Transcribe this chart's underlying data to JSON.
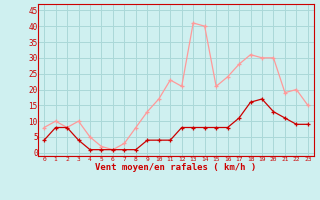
{
  "x": [
    0,
    1,
    2,
    3,
    4,
    5,
    6,
    7,
    8,
    9,
    10,
    11,
    12,
    13,
    14,
    15,
    16,
    17,
    18,
    19,
    20,
    21,
    22,
    23
  ],
  "wind_avg": [
    4,
    8,
    8,
    4,
    1,
    1,
    1,
    1,
    1,
    4,
    4,
    4,
    8,
    8,
    8,
    8,
    8,
    11,
    16,
    17,
    13,
    11,
    9,
    9
  ],
  "wind_gust": [
    8,
    10,
    8,
    10,
    5,
    2,
    1,
    3,
    8,
    13,
    17,
    23,
    21,
    41,
    40,
    21,
    24,
    28,
    31,
    30,
    30,
    19,
    20,
    15
  ],
  "xlabel": "Vent moyen/en rafales ( km/h )",
  "bg_color": "#cff0f0",
  "grid_color": "#aad8d8",
  "line_avg_color": "#cc0000",
  "line_gust_color": "#ff9999",
  "ylim_min": -1,
  "ylim_max": 47,
  "yticks": [
    0,
    5,
    10,
    15,
    20,
    25,
    30,
    35,
    40,
    45
  ],
  "xticks": [
    0,
    1,
    2,
    3,
    4,
    5,
    6,
    7,
    8,
    9,
    10,
    11,
    12,
    13,
    14,
    15,
    16,
    17,
    18,
    19,
    20,
    21,
    22,
    23
  ]
}
